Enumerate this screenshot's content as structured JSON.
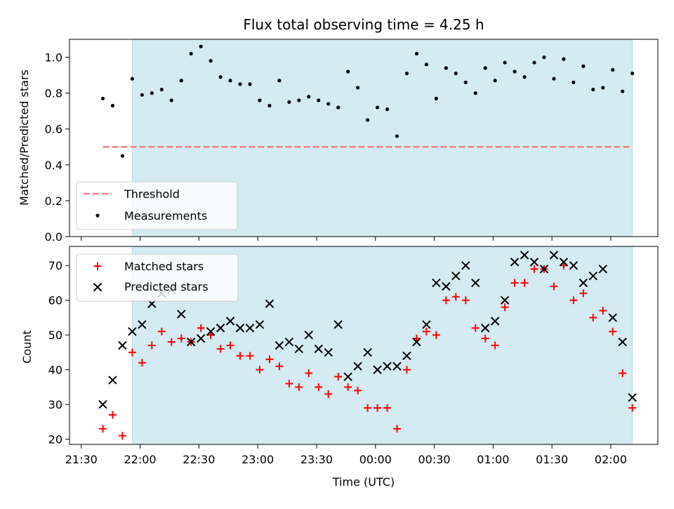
{
  "colors": {
    "shade": "#d4ebf2",
    "threshold": "#f08080",
    "measurement": "#000000",
    "matched": "#ff0000",
    "predicted": "#000000"
  },
  "chart_data": [
    {
      "type": "scatter",
      "title": "Flux total observing time = 4.25 h",
      "xlabel": "",
      "ylabel": "Matched/Predicted stars",
      "xlim": [
        "21:24",
        "02:24"
      ],
      "ylim": [
        0.0,
        1.1
      ],
      "yticks": [
        "0.0",
        "0.2",
        "0.4",
        "0.6",
        "0.8",
        "1.0"
      ],
      "shaded_span": [
        "21:56",
        "02:11"
      ],
      "threshold": {
        "name": "Threshold",
        "value": 0.5,
        "x_range": [
          "21:41",
          "02:11"
        ]
      },
      "legend_position": "lower-left",
      "series": [
        {
          "name": "Measurements",
          "x": [
            "21:41",
            "21:46",
            "21:51",
            "21:56",
            "22:01",
            "22:06",
            "22:11",
            "22:16",
            "22:21",
            "22:26",
            "22:31",
            "22:36",
            "22:41",
            "22:46",
            "22:51",
            "22:56",
            "23:01",
            "23:06",
            "23:11",
            "23:16",
            "23:21",
            "23:26",
            "23:31",
            "23:36",
            "23:41",
            "23:46",
            "23:51",
            "23:56",
            "00:01",
            "00:06",
            "00:11",
            "00:16",
            "00:21",
            "00:26",
            "00:31",
            "00:36",
            "00:41",
            "00:46",
            "00:51",
            "00:56",
            "01:01",
            "01:06",
            "01:11",
            "01:16",
            "01:21",
            "01:26",
            "01:31",
            "01:36",
            "01:41",
            "01:46",
            "01:51",
            "01:56",
            "02:01",
            "02:06",
            "02:11"
          ],
          "y": [
            0.77,
            0.73,
            0.45,
            0.88,
            0.79,
            0.8,
            0.82,
            0.76,
            0.87,
            1.02,
            1.06,
            0.98,
            0.89,
            0.87,
            0.85,
            0.85,
            0.76,
            0.73,
            0.87,
            0.75,
            0.76,
            0.78,
            0.76,
            0.74,
            0.72,
            0.92,
            0.83,
            0.65,
            0.72,
            0.71,
            0.56,
            0.91,
            1.02,
            0.96,
            0.77,
            0.94,
            0.91,
            0.86,
            0.8,
            0.94,
            0.87,
            0.97,
            0.92,
            0.89,
            0.97,
            1.0,
            0.88,
            0.99,
            0.86,
            0.95,
            0.82,
            0.83,
            0.93,
            0.81,
            0.91
          ]
        }
      ]
    },
    {
      "type": "scatter",
      "title": "",
      "xlabel": "Time (UTC)",
      "ylabel": "Count",
      "xlim": [
        "21:24",
        "02:24"
      ],
      "ylim": [
        18.5,
        75.5
      ],
      "xticks": [
        "21:30",
        "22:00",
        "22:30",
        "23:00",
        "23:30",
        "00:00",
        "00:30",
        "01:00",
        "01:30",
        "02:00"
      ],
      "yticks": [
        "20",
        "30",
        "40",
        "50",
        "60",
        "70"
      ],
      "shaded_span": [
        "21:56",
        "02:11"
      ],
      "legend_position": "upper-left",
      "series": [
        {
          "name": "Matched stars",
          "x": [
            "21:41",
            "21:46",
            "21:51",
            "21:56",
            "22:01",
            "22:06",
            "22:11",
            "22:16",
            "22:21",
            "22:26",
            "22:31",
            "22:36",
            "22:41",
            "22:46",
            "22:51",
            "22:56",
            "23:01",
            "23:06",
            "23:11",
            "23:16",
            "23:21",
            "23:26",
            "23:31",
            "23:36",
            "23:41",
            "23:46",
            "23:51",
            "23:56",
            "00:01",
            "00:06",
            "00:11",
            "00:16",
            "00:21",
            "00:26",
            "00:31",
            "00:36",
            "00:41",
            "00:46",
            "00:51",
            "00:56",
            "01:01",
            "01:06",
            "01:11",
            "01:16",
            "01:21",
            "01:26",
            "01:31",
            "01:36",
            "01:41",
            "01:46",
            "01:51",
            "01:56",
            "02:01",
            "02:06",
            "02:11"
          ],
          "y": [
            23,
            27,
            21,
            45,
            42,
            47,
            51,
            48,
            49,
            48,
            52,
            50,
            46,
            47,
            44,
            44,
            40,
            43,
            41,
            36,
            35,
            39,
            35,
            33,
            38,
            35,
            34,
            29,
            29,
            29,
            23,
            40,
            49,
            51,
            50,
            60,
            61,
            60,
            52,
            49,
            47,
            58,
            65,
            65,
            69,
            69,
            64,
            70,
            60,
            62,
            55,
            57,
            51,
            39,
            29
          ]
        },
        {
          "name": "Predicted stars",
          "x": [
            "21:41",
            "21:46",
            "21:51",
            "21:56",
            "22:01",
            "22:06",
            "22:11",
            "22:16",
            "22:21",
            "22:26",
            "22:31",
            "22:36",
            "22:41",
            "22:46",
            "22:51",
            "22:56",
            "23:01",
            "23:06",
            "23:11",
            "23:16",
            "23:21",
            "23:26",
            "23:31",
            "23:36",
            "23:41",
            "23:46",
            "23:51",
            "23:56",
            "00:01",
            "00:06",
            "00:11",
            "00:16",
            "00:21",
            "00:26",
            "00:31",
            "00:36",
            "00:41",
            "00:46",
            "00:51",
            "00:56",
            "01:01",
            "01:06",
            "01:11",
            "01:16",
            "01:21",
            "01:26",
            "01:31",
            "01:36",
            "01:41",
            "01:46",
            "01:51",
            "01:56",
            "02:01",
            "02:06",
            "02:11"
          ],
          "y": [
            30,
            37,
            47,
            51,
            53,
            59,
            62,
            63,
            56,
            48,
            49,
            51,
            52,
            54,
            52,
            52,
            53,
            59,
            47,
            48,
            46,
            50,
            46,
            45,
            53,
            38,
            41,
            45,
            40,
            41,
            41,
            44,
            48,
            53,
            65,
            64,
            67,
            70,
            65,
            52,
            54,
            60,
            71,
            73,
            71,
            69,
            73,
            71,
            70,
            65,
            67,
            69,
            55,
            48,
            32
          ]
        }
      ]
    }
  ]
}
